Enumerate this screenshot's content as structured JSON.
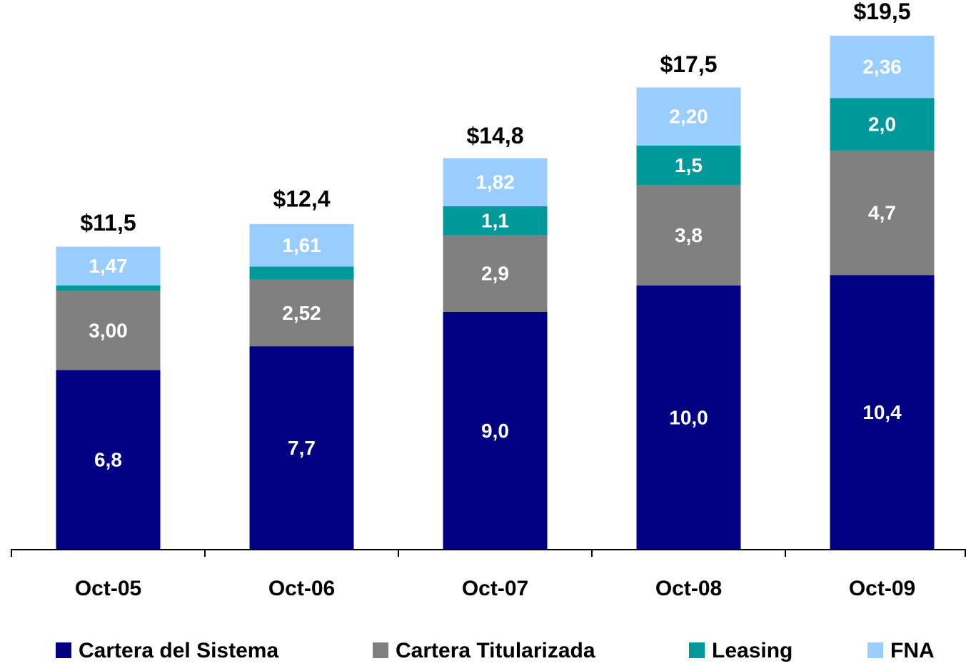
{
  "chart_data": {
    "type": "stacked_bar",
    "categories": [
      "Oct-05",
      "Oct-06",
      "Oct-07",
      "Oct-08",
      "Oct-09"
    ],
    "series": [
      {
        "name": "Cartera del Sistema",
        "color": "#000080",
        "values": [
          6.8,
          7.7,
          9.0,
          10.0,
          10.4
        ],
        "value_labels": [
          "6,8",
          "7,7",
          "9,0",
          "10,0",
          "10,4"
        ]
      },
      {
        "name": "Cartera Titularizada",
        "color": "#808080",
        "values": [
          3.0,
          2.52,
          2.9,
          3.8,
          4.7
        ],
        "value_labels": [
          "3,00",
          "2,52",
          "2,9",
          "3,8",
          "4,7"
        ]
      },
      {
        "name": "Leasing",
        "color": "#009999",
        "values": [
          0.2,
          0.5,
          1.1,
          1.5,
          2.0
        ],
        "value_labels": [
          null,
          null,
          "1,1",
          "1,5",
          "2,0"
        ]
      },
      {
        "name": "FNA",
        "color": "#99ccff",
        "values": [
          1.47,
          1.61,
          1.82,
          2.2,
          2.36
        ],
        "value_labels": [
          "1,47",
          "1,61",
          "1,82",
          "2,20",
          "2,36"
        ]
      }
    ],
    "totals": [
      11.5,
      12.4,
      14.8,
      17.5,
      19.5
    ],
    "total_labels": [
      "$11,5",
      "$12,4",
      "$14,8",
      "$17,5",
      "$19,5"
    ],
    "ylim": [
      0,
      20
    ],
    "legend": "bottom"
  }
}
